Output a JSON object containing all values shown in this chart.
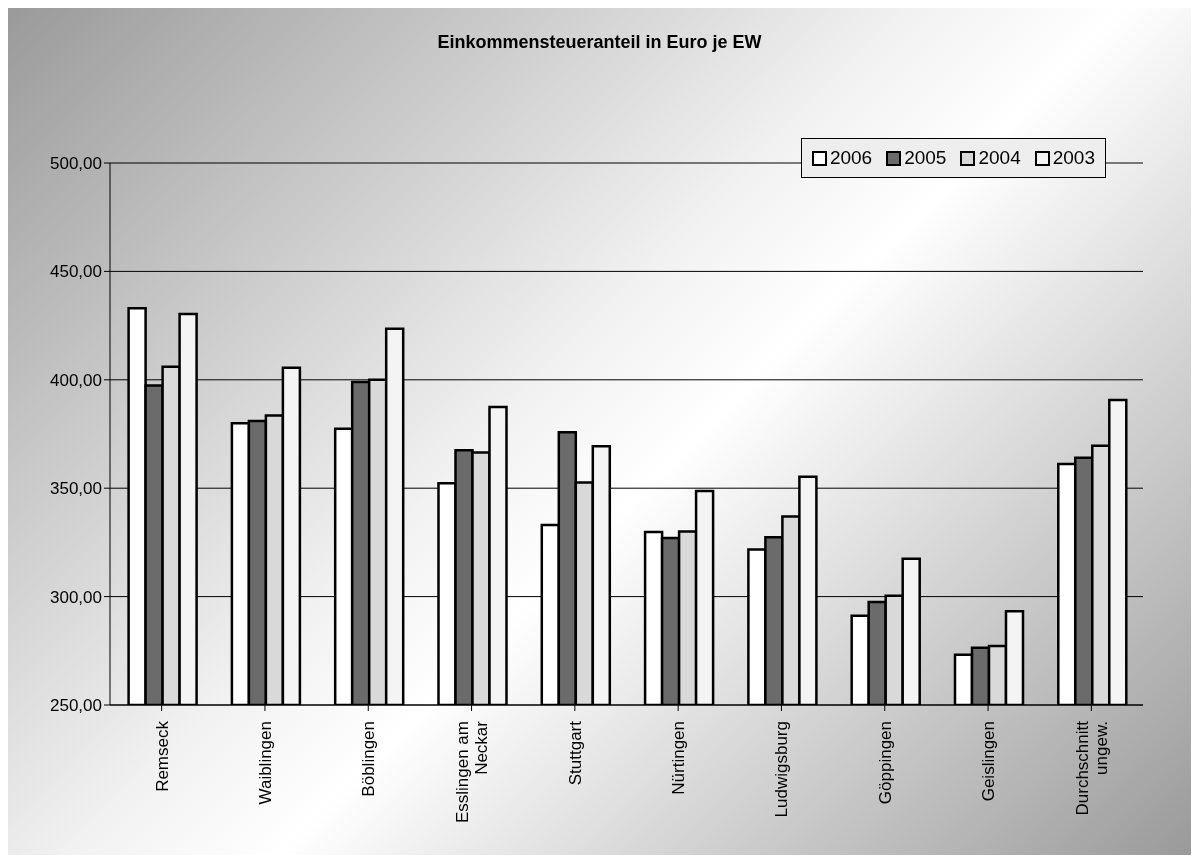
{
  "chart_data": {
    "type": "bar",
    "title": "Einkommensteueranteil in Euro je EW",
    "categories": [
      "Remseck",
      "Waiblingen",
      "Böblingen",
      "Esslingen am Neckar",
      "Stuttgart",
      "Nürtingen",
      "Ludwigsburg",
      "Göppingen",
      "Geislingen",
      "Durchschnitt ungew."
    ],
    "series": [
      {
        "name": "2006",
        "color": "#ffffff",
        "values": [
          433,
          380,
          377.4,
          352.3,
          333,
          329.8,
          321.7,
          291.2,
          273.2,
          361.2
        ]
      },
      {
        "name": "2005",
        "color": "#6b6b6b",
        "values": [
          397.4,
          381,
          399,
          367.5,
          375.8,
          327,
          327.4,
          297.5,
          276.4,
          364
        ]
      },
      {
        "name": "2004",
        "color": "#d9d9d9",
        "values": [
          406,
          383.5,
          400,
          366.5,
          352.6,
          330,
          337,
          300.4,
          277.2,
          369.6
        ]
      },
      {
        "name": "2003",
        "color": "#f4f4f4",
        "values": [
          430.4,
          405.6,
          423.6,
          387.5,
          369.4,
          348.7,
          355.3,
          317.5,
          293.2,
          390.7
        ]
      }
    ],
    "ylim": [
      250,
      500
    ],
    "yticks": [
      {
        "value": 250,
        "label": "250,00"
      },
      {
        "value": 300,
        "label": "300,00"
      },
      {
        "value": 350,
        "label": "350,00"
      },
      {
        "value": 400,
        "label": "400,00"
      },
      {
        "value": 450,
        "label": "450,00"
      },
      {
        "value": 500,
        "label": "500,00"
      }
    ],
    "grid": "y",
    "legend": "top right"
  }
}
